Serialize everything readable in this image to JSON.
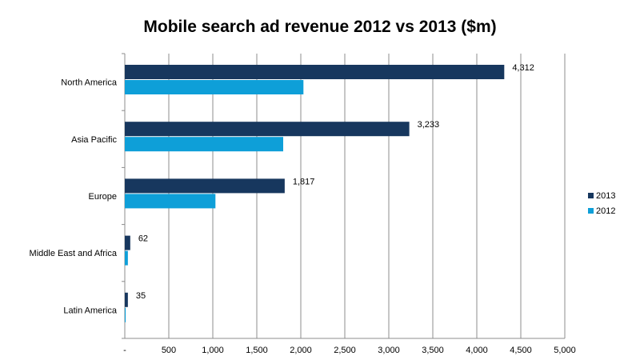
{
  "chart_data": {
    "type": "bar",
    "orientation": "horizontal",
    "title": "Mobile search ad revenue 2012 vs 2013 ($m)",
    "categories": [
      "North America",
      "Asia Pacific",
      "Europe",
      "Middle East and Africa",
      "Latin America"
    ],
    "series": [
      {
        "name": "2013",
        "color": "#17375e",
        "values": [
          4312,
          3233,
          1817,
          62,
          35
        ],
        "labels": [
          "4,312",
          "3,233",
          "1,817",
          "62",
          "35"
        ]
      },
      {
        "name": "2012",
        "color": "#0e9fd8",
        "values": [
          2030,
          1800,
          1030,
          35,
          10
        ]
      }
    ],
    "xlim": [
      0,
      5000
    ],
    "xticks": [
      0,
      500,
      1000,
      1500,
      2000,
      2500,
      3000,
      3500,
      4000,
      4500,
      5000
    ],
    "xtick_labels": [
      "-",
      "500",
      "1,000",
      "1,500",
      "2,000",
      "2,500",
      "3,000",
      "3,500",
      "4,000",
      "4,500",
      "5,000"
    ],
    "grid": "vertical",
    "legend_position": "right"
  }
}
